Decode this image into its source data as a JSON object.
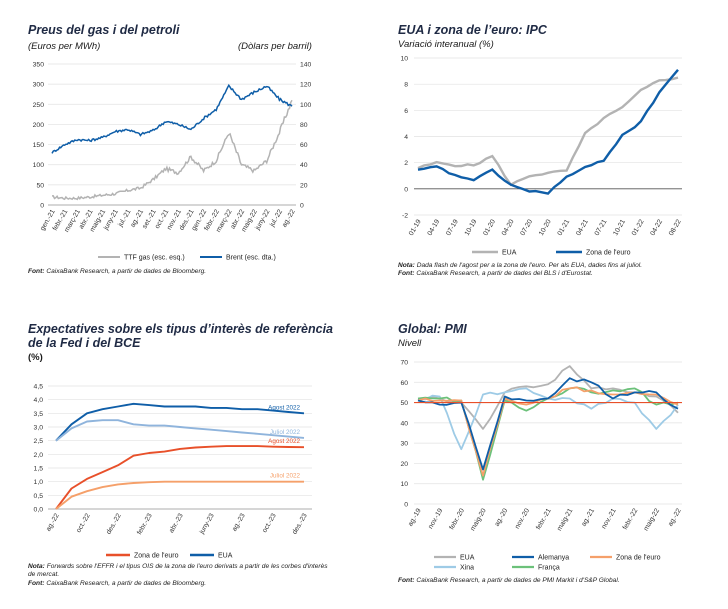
{
  "colors": {
    "dark_blue": "#0f5ea8",
    "light_blue": "#8fb4dc",
    "grey": "#b3b3b3",
    "red": "#e8502a",
    "orange": "#f5a06a",
    "green": "#6cc17a",
    "light_cyan": "#9ecbe6",
    "title": "#1f2a44"
  },
  "panels": {
    "gas": {
      "title": "Preus del gas i del petroli",
      "left_unit": "(Euros per MWh)",
      "right_unit": "(Dòlars per barril)",
      "source_label": "Font:",
      "source": "CaixaBank Research, a partir de dades de Bloomberg."
    },
    "ipc": {
      "title": "EUA i zona de l’euro: IPC",
      "subtitle": "Variació interanual (%)",
      "note_label": "Nota:",
      "note": "Dada flash de l'agost per a la zona de l'euro. Per als EUA, dades fins al juliol.",
      "source_label": "Font:",
      "source": "CaixaBank Research, a partir de dades del BLS i d'Eurostat."
    },
    "rates": {
      "title_line1": "Expectatives sobre els tipus d’interès de referència",
      "title_line2": "de la Fed i del BCE",
      "unit": "(%)",
      "note_label": "Nota:",
      "note": "Forwards sobre l'EFFR i el tipus OIS de la zona de l'euro derivats a partir de les corbes d'interès de mercat.",
      "source_label": "Font:",
      "source": "CaixaBank Research, a partir de dades de Bloomberg."
    },
    "pmi": {
      "title": "Global: PMI",
      "subtitle": "Nivell",
      "source_label": "Font:",
      "source": "CaixaBank Research, a partir de dades de PMI Markit i d'S&P Global."
    }
  },
  "chart_data": [
    {
      "id": "gas",
      "type": "line",
      "x": [
        "gen.-21",
        "febr.-21",
        "març-21",
        "abr.-21",
        "maig-21",
        "juny-21",
        "jul.-21",
        "ag.-21",
        "set.-21",
        "oct.-21",
        "nov.-21",
        "des.-21",
        "gen.-22",
        "febr.-22",
        "març-22",
        "abr.-22",
        "maig-22",
        "juny-22",
        "jul.-22",
        "ag.-22"
      ],
      "xticks": [
        "gen.-21",
        "febr.-21",
        "març-21",
        "abr.-21",
        "maig-21",
        "juny-21",
        "jul.-21",
        "ag.-21",
        "set.-21",
        "oct.-21",
        "nov.-21",
        "des.-21",
        "gen.-22",
        "febr.-22",
        "març-22",
        "abr.-22",
        "maig-22",
        "juny-22",
        "jul.-22",
        "ag.-22"
      ],
      "yleft": {
        "min": 0,
        "max": 350,
        "ticks": [
          0,
          50,
          100,
          150,
          200,
          250,
          300,
          350
        ]
      },
      "yright": {
        "min": 0,
        "max": 140,
        "ticks": [
          0,
          20,
          40,
          60,
          80,
          100,
          120,
          140
        ]
      },
      "series": [
        {
          "name": "TTF gas (esc. esq.)",
          "axis": "left",
          "color": "#b3b3b3",
          "values": [
            20,
            17,
            17,
            20,
            24,
            28,
            36,
            42,
            63,
            90,
            80,
            120,
            85,
            110,
            180,
            100,
            85,
            110,
            180,
            260
          ]
        },
        {
          "name": "Brent (esc. dta.)",
          "axis": "right",
          "color": "#0f5ea8",
          "values": [
            52,
            60,
            65,
            64,
            67,
            73,
            75,
            70,
            74,
            83,
            80,
            75,
            86,
            95,
            118,
            105,
            112,
            118,
            105,
            98
          ]
        }
      ]
    },
    {
      "id": "ipc",
      "type": "line",
      "x": [
        "01-19",
        "04-19",
        "07-19",
        "10-19",
        "01-20",
        "04-20",
        "07-20",
        "10-20",
        "01-21",
        "04-21",
        "07-21",
        "10-21",
        "01-22",
        "04-22",
        "08-22"
      ],
      "xticks": [
        "01-19",
        "04-19",
        "07-19",
        "10-19",
        "01-20",
        "04-20",
        "07-20",
        "10-20",
        "01-21",
        "04-21",
        "07-21",
        "10-21",
        "01-22",
        "04-22",
        "08-22"
      ],
      "ylim": [
        -2,
        10
      ],
      "yticks": [
        -2,
        0,
        2,
        4,
        6,
        8,
        10
      ],
      "series": [
        {
          "name": "EUA",
          "color": "#b3b3b3",
          "values": [
            1.6,
            2.0,
            1.8,
            1.8,
            2.5,
            0.3,
            1.0,
            1.2,
            1.4,
            4.2,
            5.4,
            6.2,
            7.5,
            8.3,
            8.5
          ]
        },
        {
          "name": "Zona de l'euro",
          "color": "#0f5ea8",
          "values": [
            1.4,
            1.7,
            1.0,
            0.7,
            1.4,
            0.3,
            -0.2,
            -0.3,
            0.9,
            1.6,
            2.2,
            4.1,
            5.1,
            7.4,
            9.1
          ]
        }
      ]
    },
    {
      "id": "rates",
      "type": "line",
      "x": [
        "ag.-22",
        "set.-22",
        "oct.-22",
        "nov.-22",
        "des.-22",
        "gen.-23",
        "febr.-23",
        "març-23",
        "abr.-23",
        "maig-23",
        "juny-23",
        "jul.-23",
        "ag.-23",
        "set.-23",
        "oct.-23",
        "nov.-23",
        "des.-23"
      ],
      "xticks": [
        "ag.-22",
        "oct.-22",
        "des.-22",
        "febr.-23",
        "abr.-23",
        "juny-23",
        "ag.-23",
        "oct.-23",
        "des.-23"
      ],
      "ylim": [
        0,
        4.5
      ],
      "yticks": [
        "0,0",
        "0,5",
        "1,0",
        "1,5",
        "2,0",
        "2,5",
        "3,0",
        "3,5",
        "4,0",
        "4,5"
      ],
      "series": [
        {
          "name": "Agost 2022",
          "group": "EUA",
          "color": "#0f5ea8",
          "label": "Agost 2022",
          "values": [
            2.5,
            3.1,
            3.5,
            3.65,
            3.75,
            3.85,
            3.8,
            3.75,
            3.75,
            3.75,
            3.7,
            3.7,
            3.65,
            3.65,
            3.6,
            3.55,
            3.5
          ]
        },
        {
          "name": "Juliol 2022",
          "group": "EUA",
          "color": "#8fb4dc",
          "label": "Juliol 2022",
          "values": [
            2.5,
            2.95,
            3.2,
            3.25,
            3.25,
            3.1,
            3.05,
            3.05,
            3.0,
            2.95,
            2.9,
            2.85,
            2.8,
            2.75,
            2.7,
            2.65,
            2.6
          ]
        },
        {
          "name": "Agost 2022",
          "group": "Zona de l'euro",
          "color": "#e8502a",
          "label": "Agost 2022",
          "values": [
            0.0,
            0.75,
            1.1,
            1.35,
            1.6,
            1.95,
            2.05,
            2.1,
            2.2,
            2.25,
            2.28,
            2.3,
            2.3,
            2.3,
            2.28,
            2.27,
            2.26
          ]
        },
        {
          "name": "Juliol 2022",
          "group": "Zona de l'euro",
          "color": "#f5a06a",
          "label": "Juliol 2022",
          "values": [
            0.0,
            0.45,
            0.65,
            0.8,
            0.9,
            0.95,
            0.98,
            1.0,
            1.0,
            1.0,
            1.0,
            1.0,
            1.0,
            1.0,
            1.0,
            1.0,
            1.0
          ]
        }
      ],
      "legend": [
        {
          "name": "Zona de l'euro",
          "color": "#e8502a"
        },
        {
          "name": "EUA",
          "color": "#0f5ea8"
        }
      ]
    },
    {
      "id": "pmi",
      "type": "line",
      "x": [
        "ag.-19",
        "nov.-19",
        "febr.-20",
        "maig-20",
        "ag.-20",
        "nov.-20",
        "febr.-21",
        "maig-21",
        "ag.-21",
        "nov.-21",
        "febr.-22",
        "maig-22",
        "ag.-22"
      ],
      "xticks": [
        "ag.-19",
        "nov.-19",
        "febr.-20",
        "maig-20",
        "ag.-20",
        "nov.-20",
        "febr.-21",
        "maig-21",
        "ag.-21",
        "nov.-21",
        "febr.-22",
        "maig-22",
        "ag.-22"
      ],
      "ylim": [
        0,
        70
      ],
      "yticks": [
        0,
        10,
        20,
        30,
        40,
        50,
        60,
        70
      ],
      "reference_line": 50,
      "series": [
        {
          "name": "EUA",
          "color": "#b3b3b3",
          "values": [
            51,
            52,
            50,
            37,
            55,
            58,
            59,
            68,
            57,
            57,
            55,
            53,
            45
          ]
        },
        {
          "name": "Xina",
          "color": "#9ecbe6",
          "values": [
            52,
            53,
            27,
            54,
            55,
            57,
            52,
            52,
            47,
            52,
            50,
            37,
            49
          ]
        },
        {
          "name": "Alemanya",
          "color": "#0f5ea8",
          "values": [
            51,
            49,
            50,
            17,
            53,
            51,
            52,
            62,
            60,
            52,
            55,
            55,
            47
          ]
        },
        {
          "name": "França",
          "color": "#6cc17a",
          "values": [
            52,
            52,
            51,
            12,
            51,
            46,
            52,
            57,
            55,
            56,
            57,
            49,
            50
          ]
        },
        {
          "name": "Zona de l'euro",
          "color": "#f5a06a",
          "values": [
            51,
            51,
            51,
            14,
            52,
            49,
            52,
            57,
            56,
            54,
            55,
            54,
            49
          ]
        }
      ]
    }
  ]
}
